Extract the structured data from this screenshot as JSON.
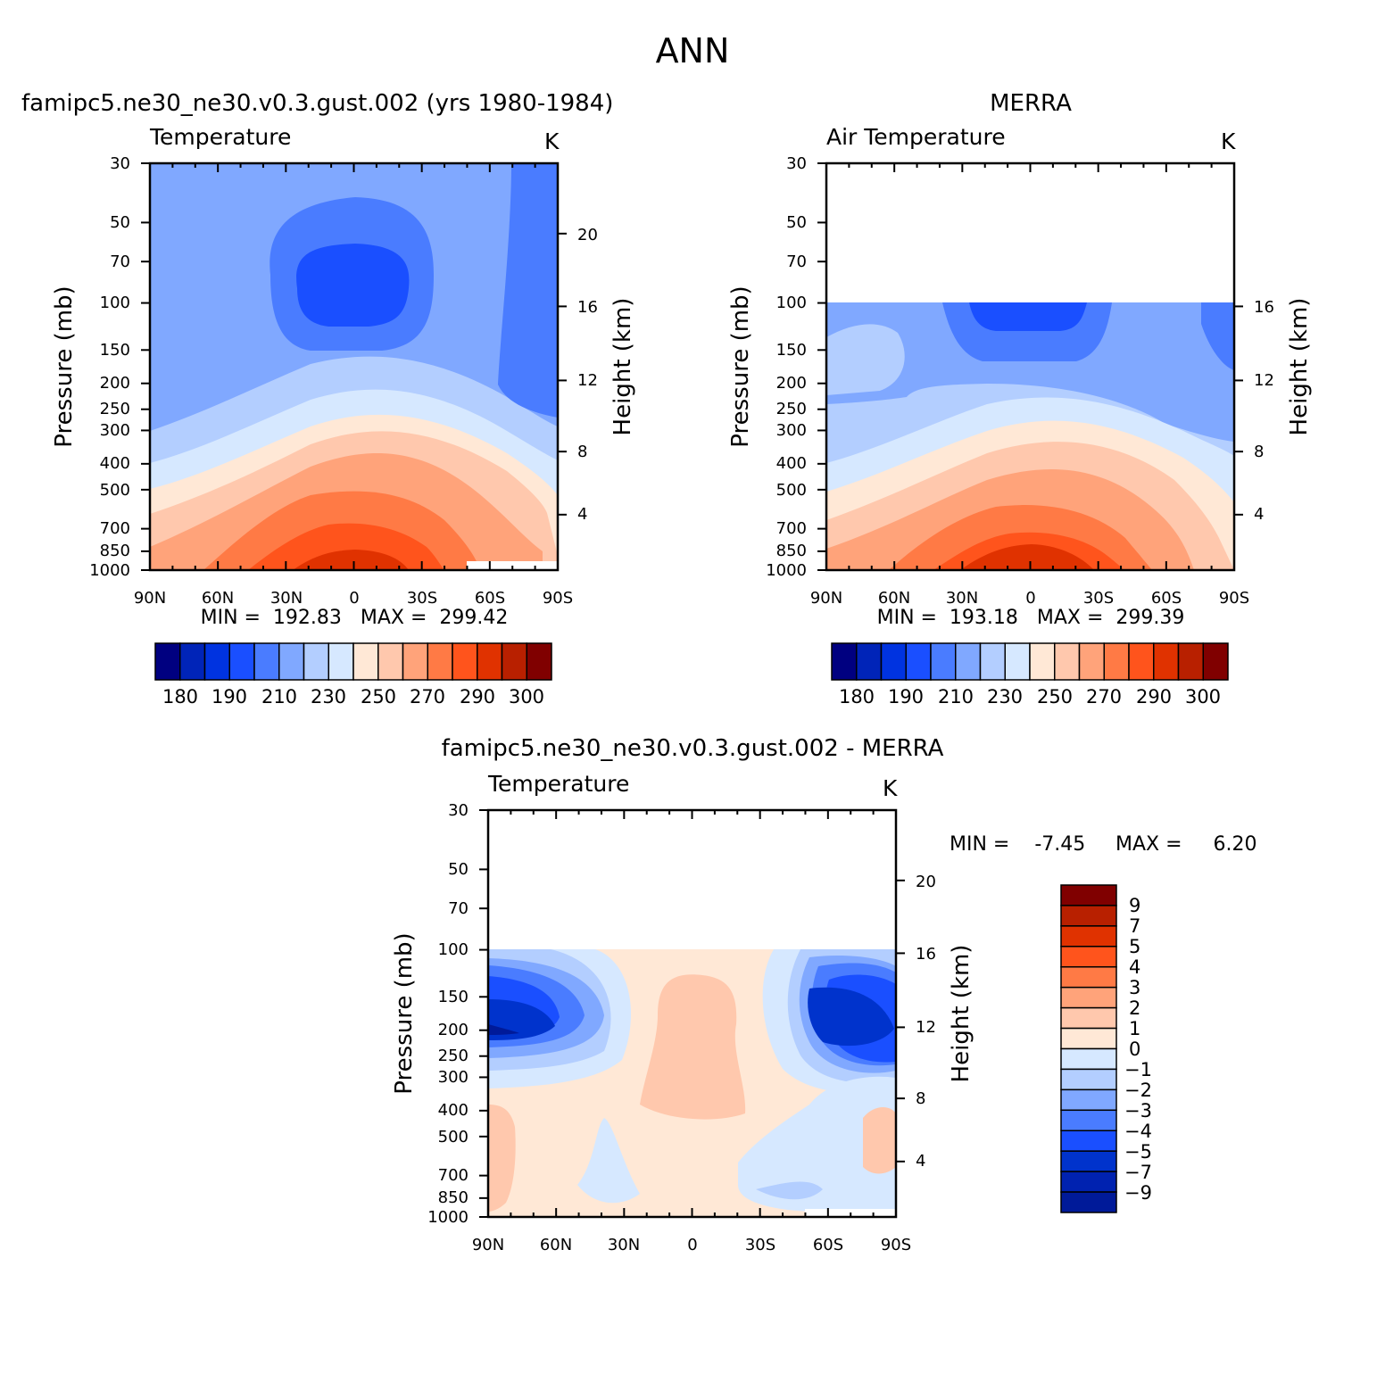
{
  "figure": {
    "title": "ANN",
    "colors": {
      "temp": [
        "#000080",
        "#0024b8",
        "#0033e0",
        "#1a4fff",
        "#4a7cff",
        "#80a8ff",
        "#b3ceff",
        "#d6e8ff",
        "#ffe8d6",
        "#ffc8ad",
        "#ffa37a",
        "#ff7a45",
        "#ff541c",
        "#e03200",
        "#b82000",
        "#800000"
      ],
      "diff": [
        "#001a99",
        "#0022b0",
        "#0033cc",
        "#1a4fff",
        "#4a7cff",
        "#80a8ff",
        "#b3ceff",
        "#d6e8ff",
        "#ffe8d6",
        "#ffc8ad",
        "#ffa37a",
        "#ff7a45",
        "#ff541c",
        "#e03200",
        "#b82000",
        "#800000"
      ]
    }
  },
  "panels": {
    "model": {
      "header": "famipc5.ne30_ne30.v0.3.gust.002 (yrs 1980-1984)",
      "left_label": "Temperature",
      "units": "K",
      "stats": "MIN =  192.83   MAX =  299.42"
    },
    "obs": {
      "header": "MERRA",
      "left_label": "Air Temperature",
      "units": "K",
      "stats": "MIN =  193.18   MAX =  299.39"
    },
    "diff": {
      "header": "famipc5.ne30_ne30.v0.3.gust.002 - MERRA",
      "left_label": "Temperature",
      "units": "K",
      "stats_min": "MIN =    -7.45",
      "stats_max": "MAX =     6.20"
    }
  },
  "chart_data": [
    {
      "type": "heatmap",
      "title": "famipc5.ne30_ne30.v0.3.gust.002 (yrs 1980-1984)",
      "variable": "Temperature",
      "units": "K",
      "xlabel": "",
      "ylabel": "Pressure (mb)",
      "ylabel_right": "Height (km)",
      "xticks": [
        "90N",
        "60N",
        "30N",
        "0",
        "30S",
        "60S",
        "90S"
      ],
      "yticks": [
        "30",
        "50",
        "70",
        "100",
        "150",
        "200",
        "250",
        "300",
        "400",
        "500",
        "700",
        "850",
        "1000"
      ],
      "yticks_right": [
        "20",
        "16",
        "12",
        "8",
        "4"
      ],
      "ylim": [
        1000,
        30
      ],
      "y_scale": "log",
      "min": 192.83,
      "max": 299.42,
      "colorbar_labels": [
        "180",
        "190",
        "210",
        "230",
        "250",
        "270",
        "290",
        "300"
      ],
      "cold_dome": "200 K core near 70-100 mb over 0-30N",
      "warm_core": "300 K near 1000 mb over the equator"
    },
    {
      "type": "heatmap",
      "title": "MERRA",
      "variable": "Air Temperature",
      "units": "K",
      "xlabel": "",
      "ylabel": "Pressure (mb)",
      "ylabel_right": "Height (km)",
      "xticks": [
        "90N",
        "60N",
        "30N",
        "0",
        "30S",
        "60S",
        "90S"
      ],
      "yticks": [
        "30",
        "50",
        "70",
        "100",
        "150",
        "200",
        "250",
        "300",
        "400",
        "500",
        "700",
        "850",
        "1000"
      ],
      "yticks_right": [
        "16",
        "12",
        "8",
        "4"
      ],
      "ylim": [
        1000,
        30
      ],
      "y_scale": "log",
      "data_top": 100,
      "min": 193.18,
      "max": 299.39,
      "colorbar_labels": [
        "180",
        "190",
        "210",
        "230",
        "250",
        "270",
        "290",
        "300"
      ]
    },
    {
      "type": "heatmap",
      "title": "famipc5.ne30_ne30.v0.3.gust.002 - MERRA",
      "variable": "Temperature",
      "units": "K",
      "xlabel": "",
      "ylabel": "Pressure (mb)",
      "ylabel_right": "Height (km)",
      "xticks": [
        "90N",
        "60N",
        "30N",
        "0",
        "30S",
        "60S",
        "90S"
      ],
      "yticks": [
        "30",
        "50",
        "70",
        "100",
        "150",
        "200",
        "250",
        "300",
        "400",
        "500",
        "700",
        "850",
        "1000"
      ],
      "yticks_right": [
        "20",
        "16",
        "12",
        "8",
        "4"
      ],
      "ylim": [
        1000,
        30
      ],
      "y_scale": "log",
      "data_top": 100,
      "min": -7.45,
      "max": 6.2,
      "colorbar_labels": [
        "9",
        "7",
        "5",
        "4",
        "3",
        "2",
        "1",
        "0",
        "−1",
        "−2",
        "−3",
        "−4",
        "−5",
        "−7",
        "−9"
      ]
    }
  ]
}
